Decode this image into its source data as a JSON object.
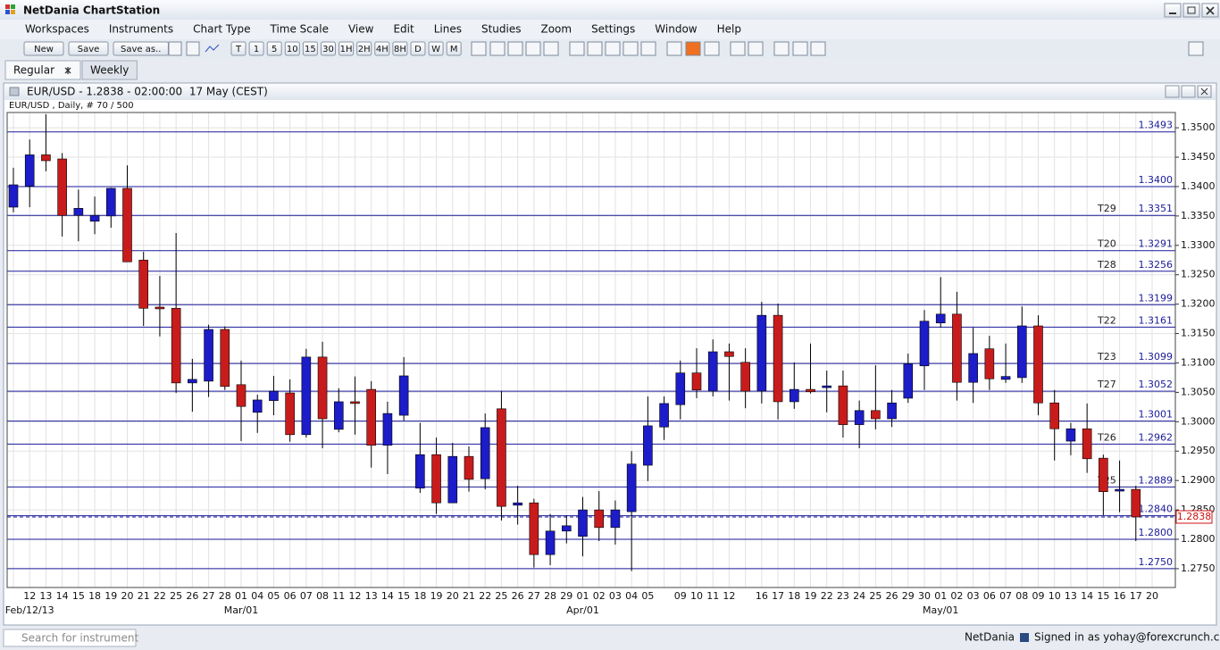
{
  "app": {
    "title": "NetDania ChartStation",
    "menu": [
      "Workspaces",
      "Instruments",
      "Chart Type",
      "Time Scale",
      "View",
      "Edit",
      "Lines",
      "Studies",
      "Zoom",
      "Settings",
      "Window",
      "Help"
    ],
    "toolbar": {
      "file_buttons": [
        "New",
        "Save",
        "Save as.."
      ],
      "period_buttons": [
        "T",
        "1",
        "5",
        "10",
        "15",
        "30",
        "1H",
        "2H",
        "4H",
        "8H",
        "D",
        "W",
        "M"
      ]
    },
    "tabs": [
      "Regular",
      "Weekly"
    ],
    "status": {
      "search_placeholder": "Search for instrument",
      "brand": "NetDania",
      "signed_in": "Signed in as yohay@forexcrunch.com"
    }
  },
  "chart_window": {
    "title": "EUR/USD - 1.2838 - 02:00:00  17 May (CEST)"
  },
  "chart_data": {
    "type": "candlestick",
    "subtitle": "EUR/USD , Daily, # 70 / 500",
    "categories": [
      null,
      "12",
      "13",
      "14",
      "15",
      "18",
      "19",
      "20",
      "21",
      "22",
      "25",
      "26",
      "27",
      "28",
      "01",
      "04",
      "05",
      "06",
      "07",
      "08",
      "11",
      "12",
      "13",
      "14",
      "15",
      "18",
      "19",
      "20",
      "21",
      "22",
      "25",
      "26",
      "27",
      "28",
      "29",
      "01",
      "02",
      "03",
      "04",
      "05",
      null,
      "09",
      "10",
      "11",
      "12",
      null,
      "16",
      "17",
      "18",
      "19",
      "22",
      "23",
      "24",
      "25",
      "26",
      "29",
      "30",
      "01",
      "02",
      "03",
      "06",
      "07",
      "08",
      "09",
      "10",
      "13",
      "14",
      "15",
      "16",
      "17",
      "20"
    ],
    "period_labels": [
      {
        "label": "Feb/12/13",
        "category": 1
      },
      {
        "label": "Mar/01",
        "category": 14
      },
      {
        "label": "Apr/01",
        "category": 35
      },
      {
        "label": "May/01",
        "category": 57
      }
    ],
    "open": [
      1.3365,
      1.3401,
      1.3454,
      1.3447,
      1.3351,
      1.3341,
      1.335,
      1.3397,
      1.3275,
      1.3195,
      1.3193,
      1.3066,
      1.3069,
      1.3157,
      1.3063,
      1.3016,
      1.3036,
      1.3049,
      1.2978,
      1.311,
      1.2987,
      1.3034,
      1.3055,
      1.296,
      1.3011,
      1.2887,
      1.2944,
      1.2862,
      1.2941,
      1.2903,
      1.3022,
      1.2858,
      1.2862,
      1.2774,
      1.2814,
      1.2805,
      1.285,
      1.282,
      1.2847,
      1.2926,
      1.2991,
      1.3029,
      1.3083,
      1.3052,
      1.3119,
      1.3101,
      1.3052,
      1.3181,
      1.3034,
      1.3055,
      1.3058,
      1.3061,
      1.2995,
      1.3019,
      1.3005,
      1.304,
      1.3095,
      1.3168,
      1.3183,
      1.3067,
      1.3124,
      1.3072,
      1.3075,
      1.3163,
      1.3032,
      1.2967,
      1.2988,
      1.2938,
      1.2882,
      1.2885,
      null
    ],
    "high": [
      1.3432,
      1.348,
      1.3523,
      1.3457,
      1.3395,
      1.3383,
      1.3398,
      1.3436,
      1.3289,
      1.3248,
      1.3321,
      1.3107,
      1.3165,
      1.3162,
      1.3104,
      1.3046,
      1.3078,
      1.3072,
      1.3124,
      1.3136,
      1.3057,
      1.3077,
      1.3069,
      1.3034,
      1.311,
      1.2998,
      1.2973,
      1.2964,
      1.2958,
      1.3014,
      1.3052,
      1.2891,
      1.2869,
      1.2843,
      1.2841,
      1.2872,
      1.2882,
      1.2866,
      1.295,
      1.3043,
      1.3043,
      1.3104,
      1.3125,
      1.314,
      1.3133,
      1.3125,
      1.3204,
      1.3201,
      1.3101,
      1.3133,
      1.3087,
      1.3087,
      1.3036,
      1.3096,
      1.3054,
      1.3116,
      1.319,
      1.3246,
      1.3221,
      1.316,
      1.3146,
      1.3133,
      1.3196,
      1.3181,
      1.3054,
      1.2998,
      1.3031,
      1.2944,
      1.2934,
      1.2891,
      null
    ],
    "low": [
      1.3356,
      1.3365,
      1.3426,
      1.3315,
      1.3307,
      1.3319,
      1.333,
      1.3272,
      1.3163,
      1.3145,
      1.3049,
      1.3017,
      1.3042,
      1.3054,
      1.2967,
      1.2981,
      1.3011,
      1.2966,
      1.2973,
      1.2955,
      1.2982,
      1.2978,
      1.2922,
      1.2911,
      1.3002,
      1.2879,
      1.2843,
      1.2862,
      1.2881,
      1.2885,
      1.2832,
      1.2825,
      1.2752,
      1.2756,
      1.2793,
      1.2771,
      1.2797,
      1.2791,
      1.2746,
      1.2899,
      1.2969,
      1.3004,
      1.304,
      1.3043,
      1.3036,
      1.3023,
      1.3031,
      1.3004,
      1.3022,
      1.3048,
      1.3016,
      1.2973,
      1.2955,
      1.2987,
      1.2991,
      1.3032,
      1.3054,
      1.316,
      1.3036,
      1.3032,
      1.3054,
      1.3066,
      1.3066,
      1.3011,
      1.2934,
      1.2943,
      1.2913,
      1.2841,
      1.2846,
      1.2797,
      null
    ],
    "close": [
      1.3403,
      1.3454,
      1.3444,
      1.3351,
      1.3363,
      1.3351,
      1.3397,
      1.3272,
      1.3193,
      1.3192,
      1.3066,
      1.3072,
      1.3157,
      1.306,
      1.3026,
      1.3037,
      1.3052,
      1.2978,
      1.311,
      1.3005,
      1.3034,
      1.3031,
      1.296,
      1.3014,
      1.3078,
      1.2944,
      1.2862,
      1.2941,
      1.2902,
      1.299,
      1.2856,
      1.2862,
      1.2774,
      1.2814,
      1.2823,
      1.285,
      1.282,
      1.285,
      1.2928,
      1.2993,
      1.3031,
      1.3083,
      1.3054,
      1.3119,
      1.3111,
      1.3052,
      1.3181,
      1.3034,
      1.3055,
      1.3051,
      1.3061,
      1.2995,
      1.3019,
      1.3005,
      1.3032,
      1.3098,
      1.3171,
      1.3183,
      1.3067,
      1.3116,
      1.3073,
      1.3077,
      1.3163,
      1.3032,
      1.2988,
      1.2988,
      1.2937,
      1.2881,
      1.2885,
      1.2838,
      null
    ],
    "up_color": "#1c1cc8",
    "down_color": "#c81c1c",
    "ylim": [
      1.2718,
      1.3526
    ],
    "yticks": [
      {
        "value": 1.275,
        "label": "1.2750"
      },
      {
        "value": 1.28,
        "label": "1.2800"
      },
      {
        "value": 1.285,
        "label": "1.2850"
      },
      {
        "value": 1.29,
        "label": "1.2900"
      },
      {
        "value": 1.295,
        "label": "1.2950"
      },
      {
        "value": 1.3,
        "label": "1.3000"
      },
      {
        "value": 1.305,
        "label": "1.3050"
      },
      {
        "value": 1.31,
        "label": "1.3100"
      },
      {
        "value": 1.315,
        "label": "1.3150"
      },
      {
        "value": 1.32,
        "label": "1.3200"
      },
      {
        "value": 1.325,
        "label": "1.3250"
      },
      {
        "value": 1.33,
        "label": "1.3300"
      },
      {
        "value": 1.335,
        "label": "1.3350"
      },
      {
        "value": 1.34,
        "label": "1.3400"
      },
      {
        "value": 1.345,
        "label": "1.3450"
      },
      {
        "value": 1.35,
        "label": "1.3500"
      }
    ],
    "grid": true,
    "level_color": "#1a1a9a",
    "levels": [
      {
        "value": 1.3493,
        "label": "1.3493"
      },
      {
        "value": 1.34,
        "label": "1.3400"
      },
      {
        "value": 1.3351,
        "label": "1.3351",
        "tag": "T29"
      },
      {
        "value": 1.3291,
        "label": "1.3291",
        "tag": "T20"
      },
      {
        "value": 1.3256,
        "label": "1.3256",
        "tag": "T28"
      },
      {
        "value": 1.3199,
        "label": "1.3199"
      },
      {
        "value": 1.3161,
        "label": "1.3161",
        "tag": "T22"
      },
      {
        "value": 1.3099,
        "label": "1.3099",
        "tag": "T23"
      },
      {
        "value": 1.3052,
        "label": "1.3052",
        "tag": "T27"
      },
      {
        "value": 1.3001,
        "label": "1.3001"
      },
      {
        "value": 1.2962,
        "label": "1.2962",
        "tag": "T26"
      },
      {
        "value": 1.2889,
        "label": "1.2889",
        "tag": "T25"
      },
      {
        "value": 1.284,
        "label": "1.2840"
      },
      {
        "value": 1.28,
        "label": "1.2800"
      },
      {
        "value": 1.275,
        "label": "1.2750"
      }
    ],
    "current": {
      "value": 1.2838,
      "label": "1.2838",
      "color": "#d01010"
    }
  }
}
